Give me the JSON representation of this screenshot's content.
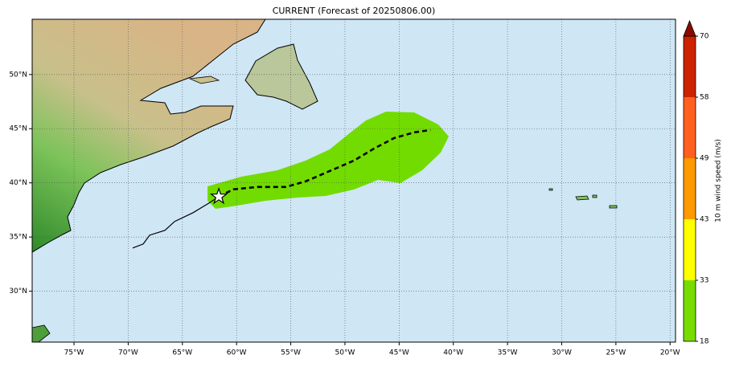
{
  "title": "CURRENT (Forecast of 20250806.00)",
  "map": {
    "lon_range": [
      -78.86,
      -19.5
    ],
    "lat_range": [
      25.3,
      55.1
    ],
    "lon_ticks": [
      {
        "value": -75,
        "label": "75°W"
      },
      {
        "value": -70,
        "label": "70°W"
      },
      {
        "value": -65,
        "label": "65°W"
      },
      {
        "value": -60,
        "label": "60°W"
      },
      {
        "value": -55,
        "label": "55°W"
      },
      {
        "value": -50,
        "label": "50°W"
      },
      {
        "value": -45,
        "label": "45°W"
      },
      {
        "value": -40,
        "label": "40°W"
      },
      {
        "value": -35,
        "label": "35°W"
      },
      {
        "value": -30,
        "label": "30°W"
      },
      {
        "value": -25,
        "label": "25°W"
      },
      {
        "value": -20,
        "label": "20°W"
      }
    ],
    "lat_ticks": [
      {
        "value": 30,
        "label": "30°N"
      },
      {
        "value": 35,
        "label": "35°N"
      },
      {
        "value": 40,
        "label": "40°N"
      },
      {
        "value": 45,
        "label": "45°N"
      },
      {
        "value": 50,
        "label": "50°N"
      }
    ],
    "grid": true,
    "ocean_color": "#cfe6f5"
  },
  "track": {
    "past": {
      "lon": [
        -69.58,
        -68.61,
        -68.02,
        -66.61,
        -65.72,
        -64.01,
        -62.53,
        -61.64
      ],
      "lat": [
        33.99,
        34.36,
        35.17,
        35.62,
        36.43,
        37.25,
        38.14,
        38.73
      ]
    },
    "forecast": {
      "lon": [
        -61.64,
        -60.3,
        -58.07,
        -55.47,
        -53.62,
        -51.39,
        -49.16,
        -47.31,
        -45.45,
        -43.6,
        -42.11
      ],
      "lat": [
        38.73,
        39.4,
        39.62,
        39.62,
        40.14,
        41.1,
        42.06,
        43.17,
        44.14,
        44.66,
        44.88
      ]
    }
  },
  "colorbar": {
    "label": "10 m wind speed (m/s)",
    "levels": [
      18,
      33,
      43,
      49,
      58,
      70
    ],
    "colors": [
      "#78dc00",
      "#ffff00",
      "#ff9900",
      "#ff6020",
      "#cc2200"
    ],
    "extend_color": "#8b0a00"
  }
}
